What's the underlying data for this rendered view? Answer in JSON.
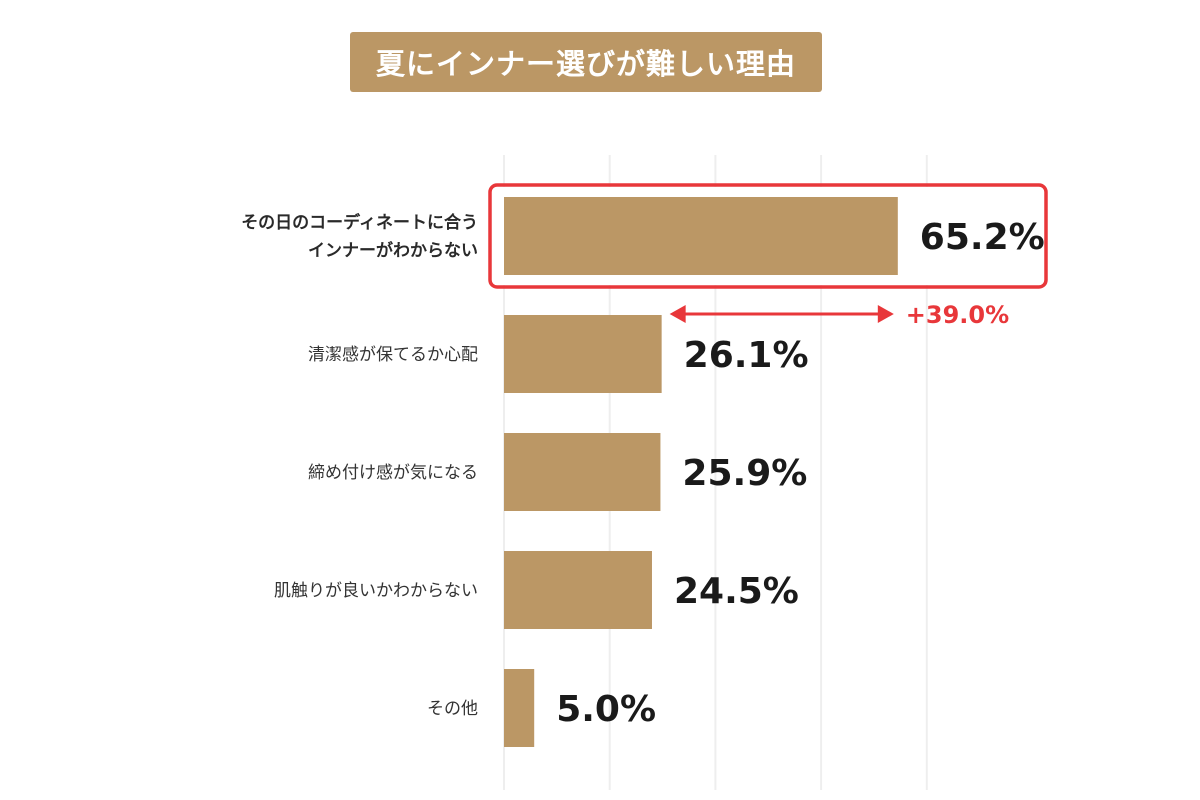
{
  "chart_data": {
    "type": "bar",
    "orientation": "horizontal",
    "title": "夏にインナー選びが難しい理由",
    "categories": [
      [
        "その日のコーディネートに合う",
        "インナーがわからない"
      ],
      [
        "清潔感が保てるか心配"
      ],
      [
        "締め付け感が気になる"
      ],
      [
        "肌触りが良いかわからない"
      ],
      [
        "その他"
      ]
    ],
    "values": [
      65.2,
      26.1,
      25.9,
      24.5,
      5.0
    ],
    "value_labels": [
      "65.2%",
      "26.1%",
      "25.9%",
      "24.5%",
      "5.0%"
    ],
    "highlight_index": 0,
    "difference_annotation": "+39.0%",
    "xlim": [
      0,
      70
    ],
    "grid": true,
    "colors": {
      "bar": "#bb9765",
      "highlight_border": "#e8373a",
      "annotation": "#e8373a",
      "grid": "#eeeeee",
      "title_bg": "#bb9765"
    }
  }
}
